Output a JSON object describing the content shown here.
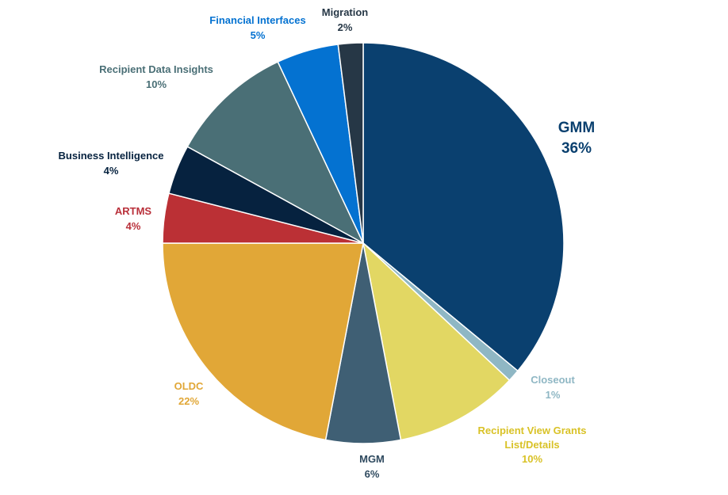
{
  "chart_data": {
    "type": "pie",
    "title": "",
    "legend": "none",
    "slices": [
      {
        "label": "GMM",
        "value": 36,
        "value_label": "36%",
        "color": "#0A406F",
        "label_color": "#0A406F"
      },
      {
        "label": "Closeout",
        "value": 1,
        "value_label": "1%",
        "color": "#8FB7C4",
        "label_color": "#8FB7C4"
      },
      {
        "label": "Recipient View Grants List/Details",
        "label_lines": [
          "Recipient View Grants",
          "List/Details"
        ],
        "value": 10,
        "value_label": "10%",
        "color": "#E2D763",
        "label_color": "#D9C227"
      },
      {
        "label": "MGM",
        "value": 6,
        "value_label": "6%",
        "color": "#3F5F74",
        "label_color": "#2F4A5F"
      },
      {
        "label": "OLDC",
        "value": 22,
        "value_label": "22%",
        "color": "#E1A737",
        "label_color": "#E1A737"
      },
      {
        "label": "ARTMS",
        "value": 4,
        "value_label": "4%",
        "color": "#BB3035",
        "label_color": "#B9303A"
      },
      {
        "label": "Business Intelligence",
        "value": 4,
        "value_label": "4%",
        "color": "#06223F",
        "label_color": "#06223F"
      },
      {
        "label": "Recipient Data Insights",
        "value": 10,
        "value_label": "10%",
        "color": "#4A6F76",
        "label_color": "#4A6F76"
      },
      {
        "label": "Financial Interfaces",
        "value": 5,
        "value_label": "5%",
        "color": "#0472D1",
        "label_color": "#0472D1"
      },
      {
        "label": "Migration",
        "value": 2,
        "value_label": "2%",
        "color": "#263746",
        "label_color": "#263746"
      }
    ]
  }
}
